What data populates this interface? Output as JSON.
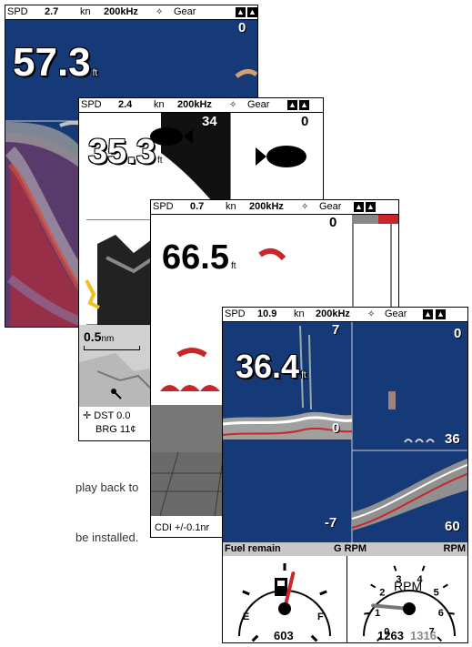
{
  "screens": [
    {
      "spd_label": "SPD",
      "speed": "2.7",
      "speed_unit": "kn",
      "frequency": "200kHz",
      "gear_label": "Gear",
      "depth": "57.3",
      "depth_unit": "ft",
      "scale_top": "0"
    },
    {
      "spd_label": "SPD",
      "speed": "2.4",
      "speed_unit": "kn",
      "frequency": "200kHz",
      "gear_label": "Gear",
      "depth": "35.3",
      "depth_unit": "ft",
      "scale_top_left": "34",
      "scale_top_right": "0",
      "map_scale": "0.5",
      "map_scale_unit": "nm",
      "dst_label": "DST",
      "dst_value": "0.0",
      "brg_label": "BRG",
      "brg_value": "11¢"
    },
    {
      "spd_label": "SPD",
      "speed": "0.7",
      "speed_unit": "kn",
      "frequency": "200kHz",
      "gear_label": "Gear",
      "depth": "66.5",
      "depth_unit": "ft",
      "scale_top": "0",
      "cdi_text": "CDI +/-0.1nr"
    },
    {
      "spd_label": "SPD",
      "speed": "10.9",
      "speed_unit": "kn",
      "frequency": "200kHz",
      "gear_label": "Gear",
      "depth": "36.4",
      "depth_unit": "ft",
      "left_scale_top": "7",
      "left_scale_mid": "0",
      "left_scale_bottom": "-7",
      "right_scale_top": "0",
      "right_scale_mid": "36",
      "right_scale_bottom": "60",
      "fuel_title": "Fuel remain",
      "rpm_title_left": "G RPM",
      "rpm_title_right": "RPM",
      "fuel_empty": "E",
      "fuel_full": "F",
      "fuel_value": "603",
      "fuel_level": 0.55,
      "rpm_label": "RPM",
      "rpm_ticks": [
        "0",
        "1",
        "2",
        "3",
        "4",
        "5",
        "6",
        "7"
      ],
      "rpm_value_1": "1263",
      "rpm_value_2": "1316",
      "rpm_needle": 1.3
    }
  ],
  "side_text": [
    "play back to",
    "be installed."
  ],
  "colors": {
    "sonar_bg": "#163a78",
    "bottom_red": "#c9262a",
    "bottom_grey": "#b0b0b0"
  }
}
